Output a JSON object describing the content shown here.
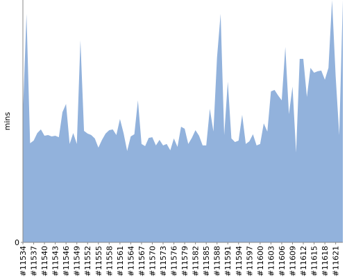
{
  "chart_data": {
    "type": "area",
    "y_label": "mins",
    "color": "#92b2dc",
    "categories": [
      "#11534",
      null,
      null,
      "#11537",
      null,
      null,
      "#11540",
      null,
      null,
      "#11543",
      null,
      null,
      "#11546",
      null,
      null,
      "#11549",
      null,
      null,
      "#11552",
      null,
      null,
      "#11555",
      null,
      null,
      "#11558",
      null,
      null,
      "#11561",
      null,
      null,
      "#11564",
      null,
      null,
      "#11567",
      null,
      null,
      "#11570",
      null,
      null,
      "#11573",
      null,
      null,
      "#11576",
      null,
      null,
      "#11579",
      null,
      null,
      "#11582",
      null,
      null,
      "#11585",
      null,
      null,
      "#11588",
      null,
      null,
      "#11591",
      null,
      null,
      "#11594",
      null,
      null,
      "#11597",
      null,
      null,
      "#11600",
      null,
      null,
      "#11603",
      null,
      null,
      "#11606",
      null,
      null,
      "#11609",
      null,
      null,
      "#11612",
      null,
      null,
      "#11615",
      null,
      null,
      "#11618",
      null,
      null,
      "#11621",
      null,
      null
    ],
    "values": [
      52.9,
      94.3,
      40.9,
      42,
      45.1,
      46.6,
      44,
      44.3,
      43.7,
      44,
      43.4,
      53.7,
      57.1,
      40.6,
      45.1,
      40.6,
      83.4,
      46,
      44.9,
      44.3,
      42.9,
      39.1,
      42.3,
      44.9,
      46.3,
      46.6,
      44.3,
      50.9,
      45.1,
      37.7,
      43.7,
      44.6,
      58.6,
      40.6,
      39.7,
      43.1,
      43.4,
      40,
      42.3,
      40,
      40.6,
      38,
      42.9,
      39.4,
      47.7,
      46.9,
      40.6,
      43.1,
      46.3,
      44,
      40,
      40,
      55.1,
      45.7,
      76.3,
      94.3,
      44.3,
      66.3,
      42.9,
      41.4,
      42,
      52.6,
      40.6,
      41.7,
      44.6,
      40,
      40.6,
      49.1,
      45.7,
      62.3,
      62.9,
      60.6,
      58.6,
      80.6,
      52.9,
      64.3,
      37.1,
      75.7,
      75.7,
      60,
      72,
      70,
      70.6,
      70.9,
      67.1,
      72,
      100,
      68.6,
      44.3,
      100
    ],
    "ylim": [
      0,
      100
    ],
    "yticks": [
      0
    ]
  }
}
